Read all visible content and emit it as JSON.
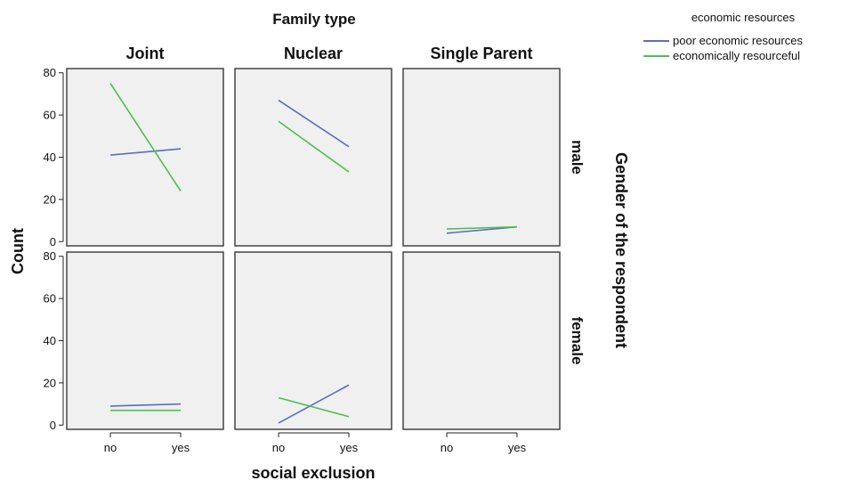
{
  "chart_data": {
    "type": "line",
    "title": "Family type",
    "xlabel": "social exclusion",
    "ylabel": "Count",
    "row_title": "Gender of the respondent",
    "columns": [
      "Joint",
      "Nuclear",
      "Single Parent"
    ],
    "rows": [
      "male",
      "female"
    ],
    "categories": [
      "no",
      "yes"
    ],
    "yticks": [
      0,
      20,
      40,
      60,
      80
    ],
    "ylim": [
      -2,
      82
    ],
    "grid": false,
    "legend": {
      "title": "economic resources",
      "placement": "top-right",
      "entries": [
        {
          "name": "poor economic resources",
          "color": "#5B6BBF"
        },
        {
          "name": "economically resourceful",
          "color": "#4CBF4C"
        }
      ]
    },
    "panels": [
      {
        "row": "male",
        "column": "Joint",
        "series": [
          {
            "name": "poor economic resources",
            "values": [
              41,
              44
            ]
          },
          {
            "name": "economically resourceful",
            "values": [
              75,
              24
            ]
          }
        ]
      },
      {
        "row": "male",
        "column": "Nuclear",
        "series": [
          {
            "name": "poor economic resources",
            "values": [
              67,
              45
            ]
          },
          {
            "name": "economically resourceful",
            "values": [
              57,
              33
            ]
          }
        ]
      },
      {
        "row": "male",
        "column": "Single Parent",
        "series": [
          {
            "name": "poor economic resources",
            "values": [
              4,
              7
            ]
          },
          {
            "name": "economically resourceful",
            "values": [
              6,
              7
            ]
          }
        ]
      },
      {
        "row": "female",
        "column": "Joint",
        "series": [
          {
            "name": "poor economic resources",
            "values": [
              9,
              10
            ]
          },
          {
            "name": "economically resourceful",
            "values": [
              7,
              7
            ]
          }
        ]
      },
      {
        "row": "female",
        "column": "Nuclear",
        "series": [
          {
            "name": "poor economic resources",
            "values": [
              1,
              19
            ]
          },
          {
            "name": "economically resourceful",
            "values": [
              13,
              4
            ]
          }
        ]
      },
      {
        "row": "female",
        "column": "Single Parent",
        "series": []
      }
    ]
  }
}
